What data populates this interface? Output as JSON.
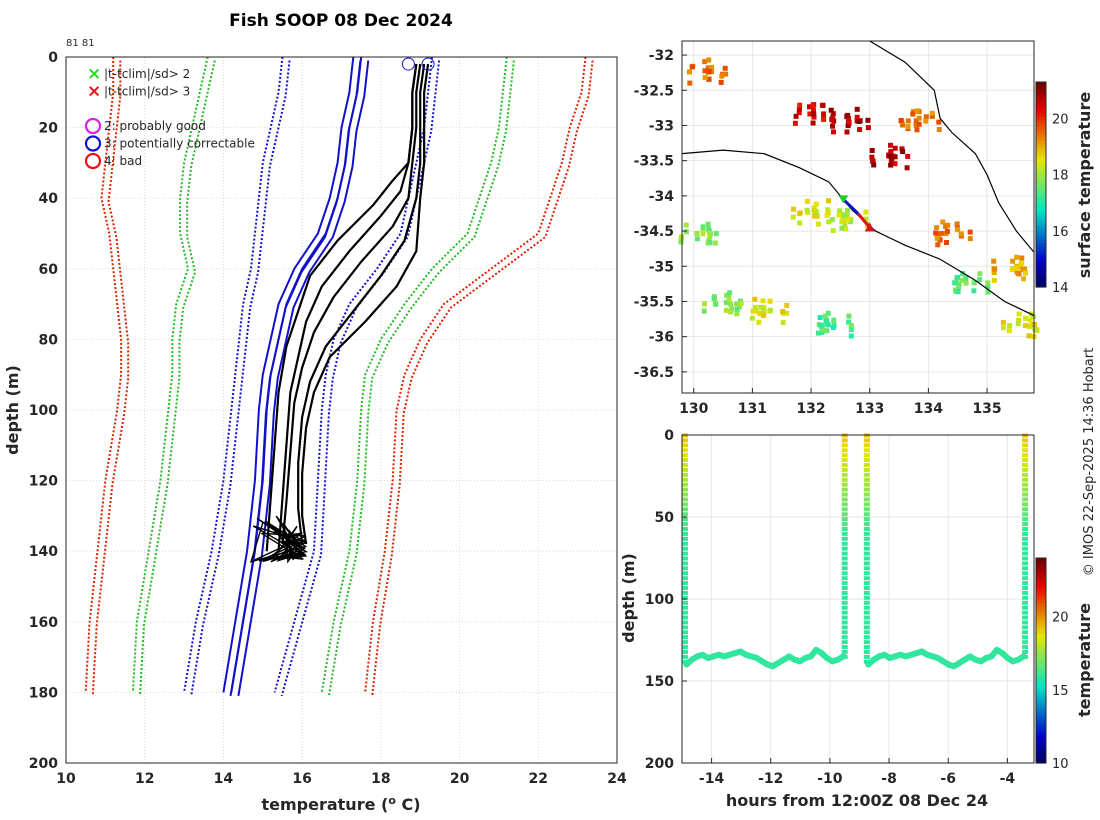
{
  "title": "Fish SOOP 08 Dec 2024",
  "profile_ids": "81 81",
  "credit": "© IMOS 22-Sep-2025 14:36 Hobart",
  "chart_data": [
    {
      "name": "profile",
      "type": "line",
      "xlabel": "temperature (",
      "xlabel_sup": "o",
      "xlabel_tail": " C)",
      "ylabel": "depth (m)",
      "xlim": [
        10,
        24
      ],
      "ylim": [
        0,
        200
      ],
      "xticks": [
        "10",
        "12",
        "14",
        "16",
        "18",
        "20",
        "22",
        "24"
      ],
      "yticks": [
        "0",
        "20",
        "40",
        "60",
        "80",
        "100",
        "120",
        "140",
        "160",
        "180",
        "200"
      ],
      "legend": [
        {
          "symbol": "×",
          "color": "#22dd22",
          "label": "|t-tclim|/sd> 2"
        },
        {
          "symbol": "×",
          "color": "#ee1111",
          "label": "|t-tclim|/sd> 3"
        },
        {
          "symbol": "○",
          "color": "#dd22dd",
          "label": "2: probably good"
        },
        {
          "symbol": "○",
          "color": "#1111dd",
          "label": "3: potentially correctable"
        },
        {
          "symbol": "○",
          "color": "#ee1111",
          "label": "4: bad"
        }
      ],
      "climatology": [
        {
          "name": "clim-3sd-low",
          "color": "#dd2200",
          "style": "dotted",
          "x": [
            11.2,
            11.2,
            11.1,
            11.0,
            10.9,
            11.1,
            11.2,
            11.3,
            11.4,
            11.4,
            11.3,
            11.0,
            10.8,
            10.6,
            10.5
          ],
          "y": [
            0,
            10,
            20,
            30,
            40,
            50,
            60,
            70,
            80,
            90,
            100,
            120,
            140,
            160,
            180
          ]
        },
        {
          "name": "clim-3sd-high",
          "color": "#dd2200",
          "style": "dotted",
          "x": [
            23.2,
            23.1,
            22.8,
            22.6,
            22.3,
            22.0,
            20.8,
            19.6,
            19.0,
            18.6,
            18.4,
            18.3,
            18.1,
            17.8,
            17.6
          ],
          "y": [
            0,
            10,
            20,
            30,
            40,
            50,
            60,
            70,
            80,
            90,
            100,
            120,
            140,
            160,
            180
          ]
        },
        {
          "name": "clim-2sd-low",
          "color": "#22bb22",
          "style": "dotted",
          "x": [
            13.6,
            13.4,
            13.2,
            13.0,
            12.9,
            12.9,
            13.1,
            12.8,
            12.7,
            12.7,
            12.6,
            12.4,
            12.1,
            11.8,
            11.7
          ],
          "y": [
            0,
            10,
            20,
            30,
            40,
            50,
            60,
            70,
            80,
            90,
            100,
            120,
            140,
            160,
            180
          ]
        },
        {
          "name": "clim-2sd-high",
          "color": "#22bb22",
          "style": "dotted",
          "x": [
            21.2,
            21.1,
            21.0,
            20.8,
            20.5,
            20.2,
            19.3,
            18.6,
            18.0,
            17.6,
            17.5,
            17.4,
            17.2,
            16.8,
            16.5
          ],
          "y": [
            0,
            10,
            20,
            30,
            40,
            50,
            60,
            70,
            80,
            90,
            100,
            120,
            140,
            160,
            180
          ]
        },
        {
          "name": "clim-1sd-low",
          "color": "#1111cc",
          "style": "dotted",
          "x": [
            15.5,
            15.4,
            15.2,
            15.0,
            14.9,
            14.8,
            14.7,
            14.5,
            14.4,
            14.3,
            14.2,
            14.0,
            13.7,
            13.3,
            13.0
          ],
          "y": [
            0,
            10,
            20,
            30,
            40,
            50,
            60,
            70,
            80,
            90,
            100,
            120,
            140,
            160,
            180
          ]
        },
        {
          "name": "clim-1sd-high",
          "color": "#1111cc",
          "style": "dotted",
          "x": [
            19.3,
            19.2,
            19.1,
            18.9,
            18.7,
            18.5,
            17.9,
            17.2,
            16.8,
            16.6,
            16.5,
            16.4,
            16.3,
            15.8,
            15.3
          ],
          "y": [
            0,
            10,
            20,
            30,
            40,
            50,
            60,
            70,
            80,
            90,
            100,
            120,
            140,
            160,
            180
          ]
        },
        {
          "name": "clim-mean-low",
          "color": "#1111cc",
          "style": "solid",
          "x": [
            17.3,
            17.2,
            17.0,
            16.9,
            16.7,
            16.4,
            15.8,
            15.4,
            15.2,
            15.0,
            14.9,
            14.8,
            14.6,
            14.3,
            14.0
          ],
          "y": [
            0,
            10,
            20,
            30,
            40,
            50,
            60,
            70,
            80,
            90,
            100,
            120,
            140,
            160,
            180
          ]
        },
        {
          "name": "clim-mean-high",
          "color": "#1111cc",
          "style": "solid",
          "x": [
            17.5,
            17.4,
            17.2,
            17.1,
            16.9,
            16.6,
            16.0,
            15.6,
            15.4,
            15.2,
            15.1,
            15.0,
            14.8,
            14.5,
            14.2
          ],
          "y": [
            0,
            10,
            20,
            30,
            40,
            50,
            60,
            70,
            80,
            90,
            100,
            120,
            140,
            160,
            180
          ]
        }
      ],
      "profiles": [
        {
          "name": "profile-1",
          "x": [
            18.9,
            18.8,
            18.8,
            18.7,
            18.3,
            17.8,
            16.9,
            16.2,
            15.9,
            15.6,
            15.4,
            15.3,
            15.2,
            15.1
          ],
          "y": [
            2,
            10,
            20,
            30,
            35,
            42,
            52,
            62,
            72,
            82,
            95,
            110,
            125,
            140
          ]
        },
        {
          "name": "profile-2",
          "x": [
            18.9,
            18.8,
            18.8,
            18.7,
            18.5,
            18.0,
            17.2,
            16.5,
            16.1,
            15.9,
            15.7,
            15.6,
            15.5,
            15.4
          ],
          "y": [
            2,
            10,
            20,
            30,
            38,
            45,
            55,
            65,
            75,
            85,
            95,
            110,
            125,
            140
          ]
        },
        {
          "name": "profile-3",
          "x": [
            19.0,
            18.9,
            18.9,
            18.8,
            18.7,
            18.3,
            17.5,
            16.8,
            16.3,
            16.0,
            15.8,
            15.7,
            15.6,
            15.5
          ],
          "y": [
            2,
            10,
            20,
            30,
            40,
            48,
            58,
            68,
            78,
            88,
            98,
            112,
            126,
            138
          ]
        },
        {
          "name": "profile-4",
          "x": [
            19.1,
            19.0,
            19.0,
            19.0,
            18.9,
            18.6,
            18.0,
            17.3,
            16.6,
            16.2,
            16.0,
            15.9,
            15.9,
            16.0
          ],
          "y": [
            2,
            10,
            20,
            30,
            40,
            52,
            62,
            72,
            82,
            92,
            102,
            115,
            128,
            138
          ]
        },
        {
          "name": "profile-5",
          "x": [
            19.2,
            19.1,
            19.1,
            19.1,
            19.0,
            18.9,
            18.4,
            17.6,
            16.7,
            16.3,
            16.1,
            16.0,
            16.0,
            16.1
          ],
          "y": [
            2,
            10,
            20,
            30,
            40,
            55,
            65,
            75,
            85,
            95,
            105,
            118,
            130,
            138
          ]
        }
      ],
      "flag_markers": [
        {
          "x": 18.7,
          "y": 2,
          "color": "#1111cc"
        },
        {
          "x": 19.2,
          "y": 2,
          "color": "#1111cc"
        }
      ]
    },
    {
      "name": "map",
      "type": "heatmap",
      "xlim": [
        129.8,
        135.8
      ],
      "ylim": [
        -36.8,
        -31.8
      ],
      "xticks": [
        "130",
        "131",
        "132",
        "133",
        "134",
        "135"
      ],
      "yticks": [
        "-32",
        "-32.5",
        "-33",
        "-33.5",
        "-34",
        "-34.5",
        "-35",
        "-35.5",
        "-36",
        "-36.5"
      ],
      "colorbar_label": "surface temperature",
      "colorbar_range": [
        14,
        21.3
      ],
      "colorbar_ticks": [
        "14",
        "16",
        "18",
        "20"
      ],
      "track": [
        {
          "lon": 132.55,
          "lat": -34.05,
          "color": "#22cc22",
          "marker": "start"
        },
        {
          "lon": 132.8,
          "lat": -34.25,
          "color": "#1111cc",
          "marker": "none"
        },
        {
          "lon": 133.0,
          "lat": -34.45,
          "color": "#dd1111",
          "marker": "end"
        }
      ],
      "sst_patches": [
        {
          "lon": 130.2,
          "lat": -32.2,
          "t": 19.5
        },
        {
          "lon": 132.0,
          "lat": -32.8,
          "t": 20.5
        },
        {
          "lon": 132.6,
          "lat": -32.9,
          "t": 20.8
        },
        {
          "lon": 133.3,
          "lat": -33.4,
          "t": 20.8
        },
        {
          "lon": 133.8,
          "lat": -32.9,
          "t": 19.5
        },
        {
          "lon": 132.0,
          "lat": -34.2,
          "t": 18.5
        },
        {
          "lon": 132.6,
          "lat": -34.3,
          "t": 18.2
        },
        {
          "lon": 130.5,
          "lat": -35.5,
          "t": 17.8
        },
        {
          "lon": 131.2,
          "lat": -35.6,
          "t": 18.5
        },
        {
          "lon": 130.1,
          "lat": -34.5,
          "t": 17.8
        },
        {
          "lon": 134.3,
          "lat": -34.5,
          "t": 19.5
        },
        {
          "lon": 135.4,
          "lat": -35.0,
          "t": 19.0
        },
        {
          "lon": 134.6,
          "lat": -35.2,
          "t": 17.5
        },
        {
          "lon": 135.6,
          "lat": -35.8,
          "t": 18.5
        },
        {
          "lon": 132.3,
          "lat": -35.8,
          "t": 17.3
        }
      ]
    },
    {
      "name": "timeseries",
      "type": "scatter",
      "xlabel": "hours from 12:00Z 08 Dec 24",
      "ylabel": "depth (m)",
      "xlim": [
        -15,
        -3.1
      ],
      "ylim": [
        0,
        200
      ],
      "xticks": [
        "-14",
        "-12",
        "-10",
        "-8",
        "-6",
        "-4"
      ],
      "yticks": [
        "0",
        "50",
        "100",
        "150",
        "200"
      ],
      "colorbar_label": "temperature",
      "colorbar_range": [
        10,
        24
      ],
      "colorbar_ticks": [
        "10",
        "15",
        "20"
      ],
      "casts": [
        {
          "name": "cast-1",
          "down_x": -14.9,
          "bottom_x_start": -14.85,
          "bottom_x_end": -9.55,
          "up_x": -9.5
        },
        {
          "name": "cast-2",
          "down_x": -8.75,
          "bottom_x_start": -8.7,
          "bottom_x_end": -3.45,
          "up_x": -3.4
        }
      ],
      "bottom_depths": [
        140,
        137,
        135,
        134,
        136,
        135,
        134,
        135,
        134,
        133,
        132,
        134,
        135,
        136,
        138,
        140,
        141,
        139,
        137,
        135,
        137,
        138,
        136,
        135,
        131,
        133,
        136,
        138,
        137,
        135
      ],
      "surface_temp": 19.3,
      "bottom_temp": 16.0
    }
  ]
}
